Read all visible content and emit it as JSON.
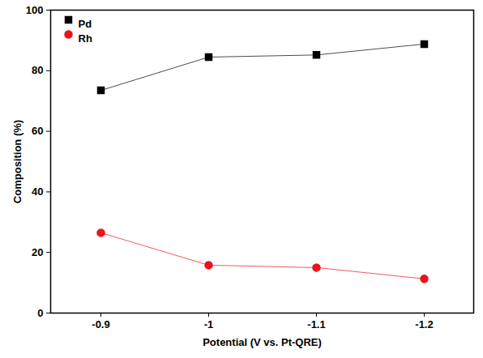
{
  "chart_data": {
    "type": "line",
    "x_label": "Potential (V vs. Pt-QRE)",
    "y_label": "Composition (%)",
    "categories": [
      "-0.9",
      "-1",
      "-1.1",
      "-1.2"
    ],
    "series": [
      {
        "name": "Pd",
        "color": "#000000",
        "marker": "square",
        "values": [
          73.5,
          84.5,
          85.2,
          88.8
        ]
      },
      {
        "name": "Rh",
        "color": "#e8141b",
        "marker": "circle",
        "values": [
          26.5,
          15.8,
          15.0,
          11.3
        ]
      }
    ],
    "ylim": [
      0,
      100
    ],
    "yticks": [
      0,
      20,
      40,
      60,
      80,
      100
    ],
    "legend": "top-left",
    "grid": false
  }
}
